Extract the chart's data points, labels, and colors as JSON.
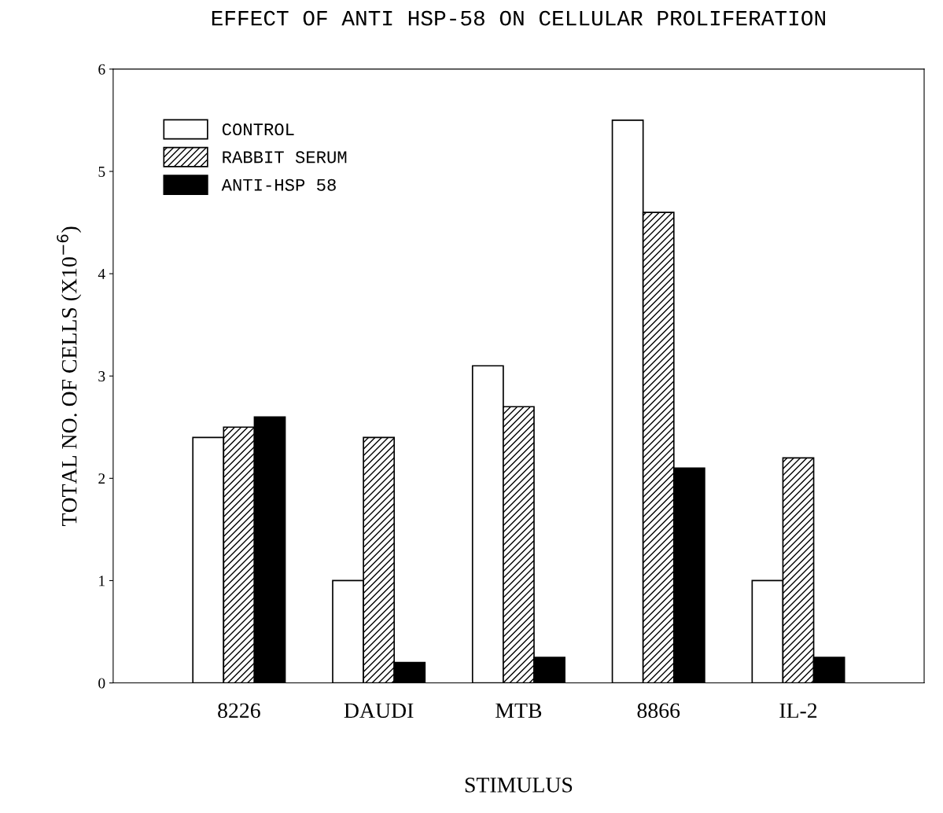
{
  "chart_data": {
    "type": "bar",
    "title": "EFFECT OF ANTI HSP-58 ON CELLULAR PROLIFERATION",
    "xlabel": "STIMULUS",
    "ylabel": "TOTAL NO. OF CELLS (X10$^{−6}$)",
    "categories": [
      "8226",
      "DAUDI",
      "MTB",
      "8866",
      "IL-2"
    ],
    "series": [
      {
        "name": "CONTROL",
        "color": "#ffffff",
        "values": [
          2.4,
          1.0,
          3.1,
          5.5,
          1.0
        ]
      },
      {
        "name": "RABBIT SERUM",
        "color": "#000000",
        "values": [
          2.5,
          2.4,
          2.7,
          4.6,
          2.2
        ]
      },
      {
        "name": "ANTI-HSP 58",
        "color": "#000000",
        "values": [
          2.6,
          0.2,
          0.25,
          2.1,
          0.25
        ]
      }
    ],
    "ylim": [
      0,
      6
    ],
    "yticks": [
      0,
      1,
      2,
      3,
      4,
      5,
      6
    ],
    "legend": "top left",
    "grid": false
  }
}
